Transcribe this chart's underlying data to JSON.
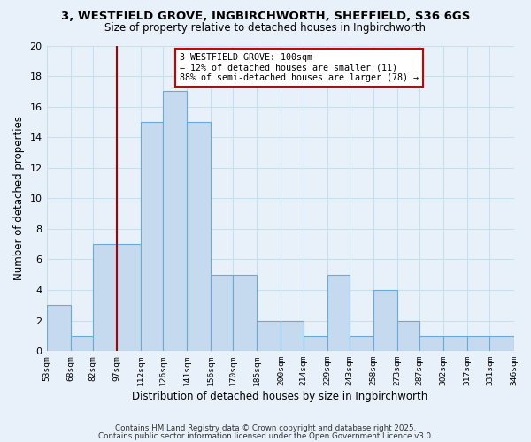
{
  "title1": "3, WESTFIELD GROVE, INGBIRCHWORTH, SHEFFIELD, S36 6GS",
  "title2": "Size of property relative to detached houses in Ingbirchworth",
  "xlabel": "Distribution of detached houses by size in Ingbirchworth",
  "ylabel": "Number of detached properties",
  "bins": [
    53,
    68,
    82,
    97,
    112,
    126,
    141,
    156,
    170,
    185,
    200,
    214,
    229,
    243,
    258,
    273,
    287,
    302,
    317,
    331,
    346
  ],
  "counts": [
    3,
    1,
    7,
    7,
    15,
    17,
    15,
    5,
    5,
    2,
    2,
    1,
    5,
    1,
    4,
    2,
    1,
    1,
    1,
    1
  ],
  "bar_color": "#c5d9ef",
  "bar_edge_color": "#6aaad4",
  "grid_color": "#c8dff0",
  "reference_line_x": 97,
  "reference_line_color": "#aa0000",
  "annotation_box_text": "3 WESTFIELD GROVE: 100sqm\n← 12% of detached houses are smaller (11)\n88% of semi-detached houses are larger (78) →",
  "annotation_box_color": "#ffffff",
  "annotation_box_edge_color": "#cc0000",
  "ylim": [
    0,
    20
  ],
  "yticks": [
    0,
    2,
    4,
    6,
    8,
    10,
    12,
    14,
    16,
    18,
    20
  ],
  "tick_labels": [
    "53sqm",
    "68sqm",
    "82sqm",
    "97sqm",
    "112sqm",
    "126sqm",
    "141sqm",
    "156sqm",
    "170sqm",
    "185sqm",
    "200sqm",
    "214sqm",
    "229sqm",
    "243sqm",
    "258sqm",
    "273sqm",
    "287sqm",
    "302sqm",
    "317sqm",
    "331sqm",
    "346sqm"
  ],
  "footer1": "Contains HM Land Registry data © Crown copyright and database right 2025.",
  "footer2": "Contains public sector information licensed under the Open Government Licence v3.0.",
  "bg_color": "#e8f1fa"
}
